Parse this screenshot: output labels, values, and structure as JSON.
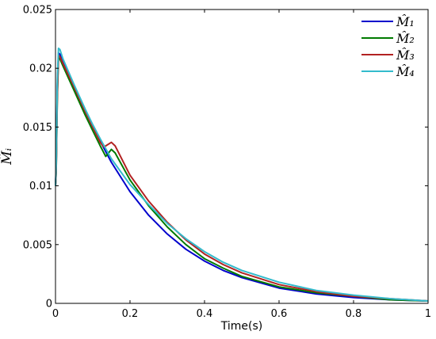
{
  "chart_data": {
    "type": "line",
    "title": "",
    "xlabel": "Time(s)",
    "ylabel": "M̂ᵢ",
    "xlim": [
      0,
      1
    ],
    "ylim": [
      0,
      0.025
    ],
    "xticks": [
      "0",
      "0.2",
      "0.4",
      "0.6",
      "0.8",
      "1"
    ],
    "yticks": [
      "0",
      "0.005",
      "0.01",
      "0.015",
      "0.02",
      "0.025"
    ],
    "grid": false,
    "legend_position": "top-right",
    "series": [
      {
        "name": "M̂₁",
        "color": "#0000CC",
        "x": [
          0,
          0.002,
          0.005,
          0.008,
          0.012,
          0.02,
          0.05,
          0.08,
          0.1,
          0.12,
          0.15,
          0.2,
          0.25,
          0.3,
          0.35,
          0.4,
          0.45,
          0.5,
          0.6,
          0.7,
          0.8,
          0.9,
          1.0
        ],
        "y": [
          0.01,
          0.0115,
          0.0185,
          0.0213,
          0.0212,
          0.0205,
          0.0183,
          0.0163,
          0.015,
          0.0138,
          0.012,
          0.0095,
          0.0075,
          0.0059,
          0.0046,
          0.0036,
          0.0028,
          0.0022,
          0.0013,
          0.0008,
          0.0005,
          0.0003,
          0.0002
        ]
      },
      {
        "name": "M̂₂",
        "color": "#007A00",
        "x": [
          0,
          0.002,
          0.005,
          0.008,
          0.012,
          0.02,
          0.05,
          0.08,
          0.1,
          0.12,
          0.135,
          0.15,
          0.16,
          0.2,
          0.25,
          0.3,
          0.35,
          0.4,
          0.45,
          0.5,
          0.6,
          0.7,
          0.8,
          0.9,
          1.0
        ],
        "y": [
          0.01,
          0.0112,
          0.0175,
          0.0209,
          0.0208,
          0.0202,
          0.0181,
          0.016,
          0.0147,
          0.0134,
          0.0125,
          0.0131,
          0.0128,
          0.0105,
          0.0083,
          0.0065,
          0.005,
          0.0038,
          0.003,
          0.0023,
          0.0014,
          0.0009,
          0.0006,
          0.0003,
          0.0002
        ]
      },
      {
        "name": "M̂₃",
        "color": "#B22222",
        "x": [
          0,
          0.002,
          0.005,
          0.008,
          0.012,
          0.02,
          0.05,
          0.08,
          0.1,
          0.12,
          0.13,
          0.15,
          0.16,
          0.2,
          0.25,
          0.3,
          0.35,
          0.4,
          0.45,
          0.5,
          0.6,
          0.7,
          0.8,
          0.9,
          1.0
        ],
        "y": [
          0.01,
          0.0112,
          0.0178,
          0.0211,
          0.021,
          0.0204,
          0.0184,
          0.0163,
          0.015,
          0.0137,
          0.0133,
          0.0137,
          0.0134,
          0.0109,
          0.0087,
          0.0069,
          0.0054,
          0.0042,
          0.0033,
          0.0026,
          0.0016,
          0.001,
          0.0006,
          0.0004,
          0.0002
        ]
      },
      {
        "name": "M̂₄",
        "color": "#33BBCC",
        "x": [
          0,
          0.002,
          0.005,
          0.008,
          0.012,
          0.02,
          0.05,
          0.08,
          0.1,
          0.12,
          0.15,
          0.2,
          0.25,
          0.3,
          0.35,
          0.4,
          0.45,
          0.5,
          0.6,
          0.7,
          0.8,
          0.9,
          1.0
        ],
        "y": [
          0.01,
          0.0118,
          0.019,
          0.0217,
          0.0216,
          0.0208,
          0.0186,
          0.0165,
          0.0152,
          0.014,
          0.0123,
          0.0101,
          0.0084,
          0.0068,
          0.0055,
          0.0044,
          0.0035,
          0.0028,
          0.0018,
          0.0011,
          0.0007,
          0.0004,
          0.0002
        ]
      }
    ]
  }
}
